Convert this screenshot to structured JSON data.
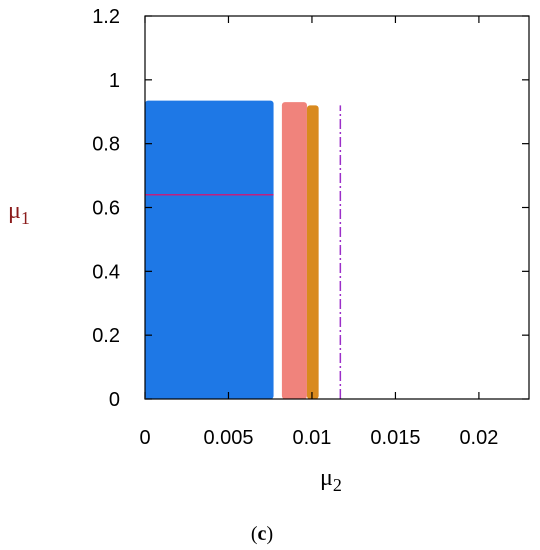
{
  "chart_data": {
    "type": "area",
    "title": "",
    "xlabel": "μ",
    "xlabel_sub": "2",
    "ylabel": "μ",
    "ylabel_sub": "1",
    "xlim": [
      0,
      0.023
    ],
    "ylim": [
      0,
      1.2
    ],
    "xticks": [
      {
        "value": 0,
        "label": "0"
      },
      {
        "value": 0.005,
        "label": "0.005"
      },
      {
        "value": 0.01,
        "label": "0.01"
      },
      {
        "value": 0.015,
        "label": "0.015"
      },
      {
        "value": 0.02,
        "label": "0.02"
      }
    ],
    "yticks": [
      {
        "value": 0,
        "label": "0"
      },
      {
        "value": 0.2,
        "label": "0.2"
      },
      {
        "value": 0.4,
        "label": "0.4"
      },
      {
        "value": 0.6,
        "label": "0.6"
      },
      {
        "value": 0.8,
        "label": "0.8"
      },
      {
        "value": 1,
        "label": "1"
      },
      {
        "value": 1.2,
        "label": "1.2"
      }
    ],
    "grid": false,
    "regions": [
      {
        "color": "#1e78e6",
        "x": [
          0.0,
          0.0077
        ],
        "y": [
          0.0,
          0.935
        ]
      },
      {
        "color": "#f0837c",
        "x": [
          0.0082,
          0.0097
        ],
        "y": [
          0.0,
          0.93
        ]
      },
      {
        "color": "#d98a1e",
        "x": [
          0.0097,
          0.0104
        ],
        "y": [
          0.0,
          0.92
        ]
      }
    ],
    "lines": [
      {
        "color": "#9b2fc9",
        "x": 0.0117,
        "y": [
          0.0,
          0.92
        ],
        "style": "dashdot"
      },
      {
        "color": "#c02080",
        "x": [
          0.0,
          0.0077
        ],
        "y": 0.64,
        "style": "solid"
      }
    ],
    "caption": "(c)",
    "caption_letter": "c"
  }
}
